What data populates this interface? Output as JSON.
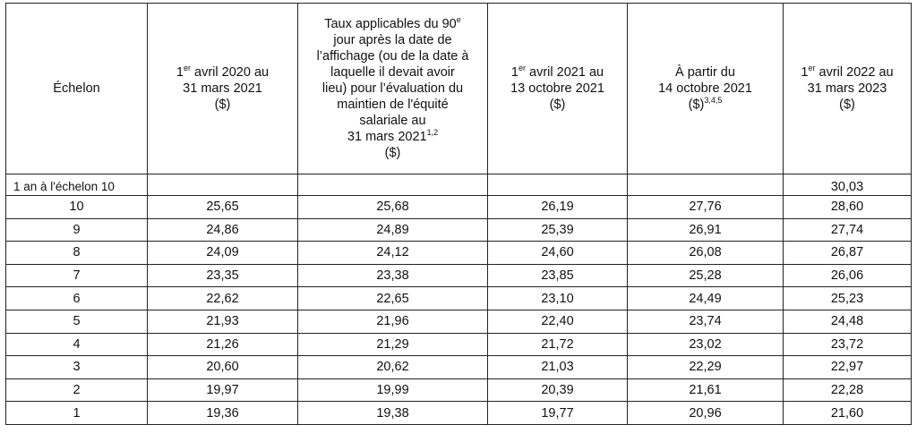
{
  "table": {
    "headers": {
      "echelon": "Échelon",
      "col1": {
        "line1_pre": "1",
        "line1_sup": "er",
        "line1_post": " avril 2020 au",
        "line2": "31 mars 2021",
        "line3": "($)"
      },
      "col2": {
        "l1_pre": "Taux applicables du 90",
        "l1_sup": "e",
        "l2": "jour après la date de",
        "l3": "l’affichage (ou de la date à",
        "l4": "laquelle il devait avoir",
        "l5": "lieu) pour l’évaluation du",
        "l6": "maintien de l'équité",
        "l7": "salariale au",
        "l8_pre": "31 mars 2021",
        "l8_sup": "1,2",
        "l9": "($)"
      },
      "col3": {
        "line1_pre": "1",
        "line1_sup": "er",
        "line1_post": " avril 2021 au",
        "line2": "13 octobre 2021",
        "line3": "($)"
      },
      "col4": {
        "line1": "À partir du",
        "line2": "14 octobre 2021",
        "line3_pre": "($)",
        "line3_sup": "3,4,5"
      },
      "col5": {
        "line1_pre": "1",
        "line1_sup": "er",
        "line1_post": " avril 2022 au",
        "line2": "31 mars 2023",
        "line3": "($)"
      }
    },
    "first_row": {
      "label": "1 an à l'échelon 10",
      "c1": "",
      "c2": "",
      "c3": "",
      "c4": "",
      "c5": "30,03"
    },
    "rows": [
      [
        "10",
        "25,65",
        "25,68",
        "26,19",
        "27,76",
        "28,60"
      ],
      [
        "9",
        "24,86",
        "24,89",
        "25,39",
        "26,91",
        "27,74"
      ],
      [
        "8",
        "24,09",
        "24,12",
        "24,60",
        "26,08",
        "26,87"
      ],
      [
        "7",
        "23,35",
        "23,38",
        "23,85",
        "25,28",
        "26,06"
      ],
      [
        "6",
        "22,62",
        "22,65",
        "23,10",
        "24,49",
        "25,23"
      ],
      [
        "5",
        "21,93",
        "21,96",
        "22,40",
        "23,74",
        "24,48"
      ],
      [
        "4",
        "21,26",
        "21,29",
        "21,72",
        "23,02",
        "23,72"
      ],
      [
        "3",
        "20,60",
        "20,62",
        "21,03",
        "22,29",
        "22,97"
      ],
      [
        "2",
        "19,97",
        "19,99",
        "20,39",
        "21,61",
        "22,28"
      ],
      [
        "1",
        "19,36",
        "19,38",
        "19,77",
        "20,96",
        "21,60"
      ]
    ]
  }
}
